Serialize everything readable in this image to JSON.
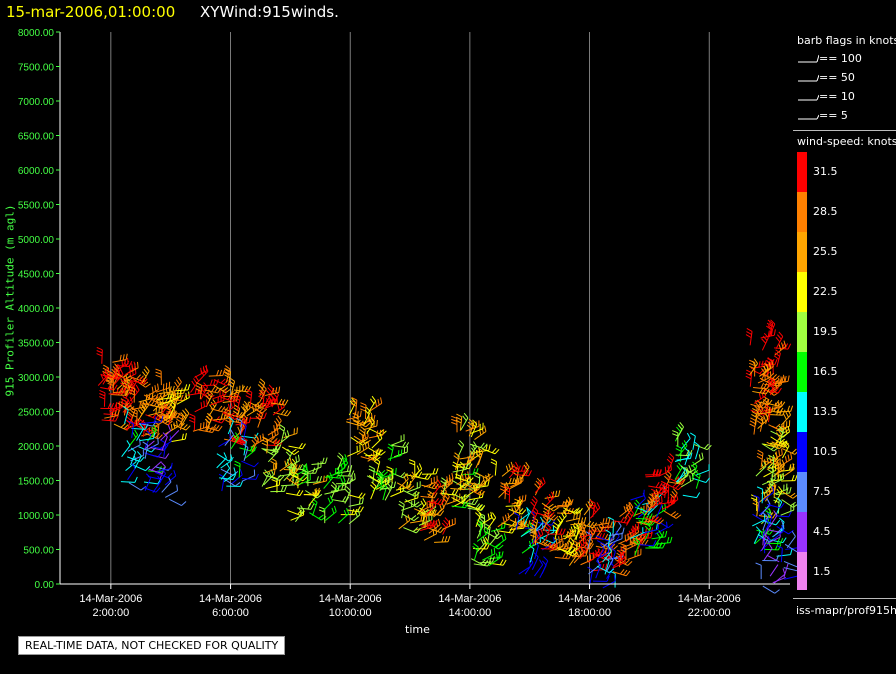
{
  "header": {
    "date": "15-mar-2006,01:00:00",
    "name": "XYWind:915winds."
  },
  "banner": "REAL-TIME DATA, NOT CHECKED FOR QUALITY",
  "source": "iss-mapr/prof915h",
  "legend": {
    "barb_title": "barb flags in knots",
    "barbs": [
      {
        "label": "== 100"
      },
      {
        "label": "== 50"
      },
      {
        "label": "== 10"
      },
      {
        "label": "== 5"
      }
    ],
    "speed_title": "wind-speed: knots",
    "speed_bins": [
      {
        "label": "31.5",
        "color": "#ff0000"
      },
      {
        "label": "28.5",
        "color": "#ff8000"
      },
      {
        "label": "25.5",
        "color": "#ffa500"
      },
      {
        "label": "22.5",
        "color": "#ffff00"
      },
      {
        "label": "19.5",
        "color": "#a0ff40"
      },
      {
        "label": "16.5",
        "color": "#00ff00"
      },
      {
        "label": "13.5",
        "color": "#00ffff"
      },
      {
        "label": "10.5",
        "color": "#0000ff"
      },
      {
        "label": "7.5",
        "color": "#5b8bff"
      },
      {
        "label": "4.5",
        "color": "#9933ff"
      },
      {
        "label": "1.5",
        "color": "#ee82ee"
      }
    ]
  },
  "chart_data": {
    "type": "scatter",
    "xlabel": "time",
    "ylabel": "915 Profiler Altitude (m agl)",
    "ylim": [
      0,
      8000
    ],
    "xlim_hours": [
      0.3,
      24.7
    ],
    "x_ticks": [
      {
        "hour": 2,
        "line1": "14-Mar-2006",
        "line2": "2:00:00"
      },
      {
        "hour": 6,
        "line1": "14-Mar-2006",
        "line2": "6:00:00"
      },
      {
        "hour": 10,
        "line1": "14-Mar-2006",
        "line2": "10:00:00"
      },
      {
        "hour": 14,
        "line1": "14-Mar-2006",
        "line2": "14:00:00"
      },
      {
        "hour": 18,
        "line1": "14-Mar-2006",
        "line2": "18:00:00"
      },
      {
        "hour": 22,
        "line1": "14-Mar-2006",
        "line2": "22:00:00"
      }
    ],
    "y_ticks": [
      "0.00",
      "500.00",
      "1000.00",
      "1500.00",
      "2000.00",
      "2500.00",
      "3000.00",
      "3500.00",
      "4000.00",
      "4500.00",
      "5000.00",
      "5500.00",
      "6000.00",
      "6500.00",
      "7000.00",
      "7500.00",
      "8000.00"
    ],
    "grid": "vertical at major x ticks",
    "barb_clusters": [
      {
        "x": 2.0,
        "y": 2800,
        "speed": 31
      },
      {
        "x": 2.5,
        "y": 2650,
        "speed": 30
      },
      {
        "x": 3.2,
        "y": 2500,
        "speed": 29
      },
      {
        "x": 4.0,
        "y": 2450,
        "speed": 27
      },
      {
        "x": 2.8,
        "y": 1900,
        "speed": 12
      },
      {
        "x": 3.5,
        "y": 1650,
        "speed": 8
      },
      {
        "x": 5.0,
        "y": 2600,
        "speed": 30
      },
      {
        "x": 6.0,
        "y": 2500,
        "speed": 29
      },
      {
        "x": 6.0,
        "y": 1750,
        "speed": 12
      },
      {
        "x": 7.0,
        "y": 2300,
        "speed": 29
      },
      {
        "x": 7.5,
        "y": 1700,
        "speed": 22
      },
      {
        "x": 8.3,
        "y": 1300,
        "speed": 21
      },
      {
        "x": 9.5,
        "y": 1250,
        "speed": 19
      },
      {
        "x": 10.2,
        "y": 2100,
        "speed": 25
      },
      {
        "x": 11.0,
        "y": 1600,
        "speed": 20
      },
      {
        "x": 12.0,
        "y": 1200,
        "speed": 22
      },
      {
        "x": 12.8,
        "y": 1000,
        "speed": 28
      },
      {
        "x": 13.5,
        "y": 1400,
        "speed": 21
      },
      {
        "x": 14.0,
        "y": 1800,
        "speed": 24
      },
      {
        "x": 14.5,
        "y": 700,
        "speed": 19
      },
      {
        "x": 15.3,
        "y": 1200,
        "speed": 27
      },
      {
        "x": 16.0,
        "y": 500,
        "speed": 12
      },
      {
        "x": 16.5,
        "y": 900,
        "speed": 29
      },
      {
        "x": 17.3,
        "y": 700,
        "speed": 25
      },
      {
        "x": 18.0,
        "y": 600,
        "speed": 30
      },
      {
        "x": 18.4,
        "y": 350,
        "speed": 10
      },
      {
        "x": 19.2,
        "y": 600,
        "speed": 31
      },
      {
        "x": 19.8,
        "y": 800,
        "speed": 13
      },
      {
        "x": 20.3,
        "y": 1300,
        "speed": 31
      },
      {
        "x": 21.3,
        "y": 1700,
        "speed": 16
      },
      {
        "x": 23.8,
        "y": 3200,
        "speed": 31
      },
      {
        "x": 23.8,
        "y": 2600,
        "speed": 28
      },
      {
        "x": 24.0,
        "y": 1900,
        "speed": 24
      },
      {
        "x": 24.0,
        "y": 1300,
        "speed": 22
      },
      {
        "x": 23.9,
        "y": 800,
        "speed": 12
      },
      {
        "x": 24.2,
        "y": 400,
        "speed": 8
      }
    ]
  }
}
